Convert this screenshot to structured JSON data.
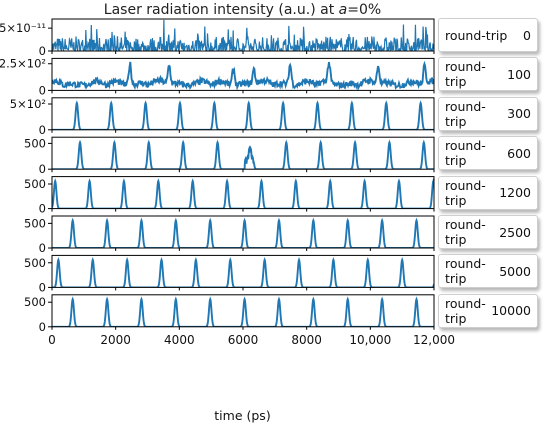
{
  "chart_data": {
    "type": "line",
    "title_prefix": "Laser radiation intensity (a.u.) at ",
    "title_var": "a",
    "title_suffix": "=0%",
    "xlabel": "time (ps)",
    "xlim": [
      0,
      12000
    ],
    "xticks": [
      0,
      2000,
      4000,
      6000,
      8000,
      10000,
      12000
    ],
    "xtick_labels": [
      "0",
      "2000",
      "4000",
      "6000",
      "8000",
      "10,000",
      "12,000"
    ],
    "line_color": "#1f77b4",
    "legend_word": "round-trip",
    "panels": [
      {
        "roundtrip": "0",
        "ylim": [
          0,
          7e-11
        ],
        "yticks": [
          0,
          5e-11
        ],
        "ytick_labels": [
          "0",
          "5×10⁻¹¹"
        ],
        "kind": "noise",
        "period": 0,
        "offset": 0,
        "peak": 0
      },
      {
        "roundtrip": "100",
        "ylim": [
          0,
          300
        ],
        "yticks": [
          0,
          250
        ],
        "ytick_labels": [
          "0",
          "2.5×10²"
        ],
        "kind": "chaotic",
        "period": 0,
        "offset": 0,
        "peak": 240
      },
      {
        "roundtrip": "300",
        "ylim": [
          0,
          620
        ],
        "yticks": [
          0,
          500
        ],
        "ytick_labels": [
          "0",
          "5×10²"
        ],
        "kind": "pulses",
        "period": 1080,
        "offset": 780,
        "peak": 520
      },
      {
        "roundtrip": "600",
        "ylim": [
          0,
          620
        ],
        "yticks": [
          0,
          500
        ],
        "ytick_labels": [
          "0",
          "500"
        ],
        "kind": "pulses",
        "period": 1080,
        "offset": 880,
        "peak": 520
      },
      {
        "roundtrip": "1200",
        "ylim": [
          0,
          650
        ],
        "yticks": [
          0,
          500
        ],
        "ytick_labels": [
          "0",
          "500"
        ],
        "kind": "pulses",
        "period": 1080,
        "offset": 100,
        "peak": 560
      },
      {
        "roundtrip": "2500",
        "ylim": [
          0,
          650
        ],
        "yticks": [
          0,
          500
        ],
        "ytick_labels": [
          "0",
          "500"
        ],
        "kind": "pulses",
        "period": 1080,
        "offset": 650,
        "peak": 560
      },
      {
        "roundtrip": "5000",
        "ylim": [
          0,
          650
        ],
        "yticks": [
          0,
          500
        ],
        "ytick_labels": [
          "0",
          "500"
        ],
        "kind": "pulses",
        "period": 1080,
        "offset": 200,
        "peak": 560
      },
      {
        "roundtrip": "10000",
        "ylim": [
          0,
          650
        ],
        "yticks": [
          0,
          500
        ],
        "ytick_labels": [
          "0",
          "500"
        ],
        "kind": "pulses",
        "period": 1080,
        "offset": 650,
        "peak": 560
      }
    ]
  }
}
